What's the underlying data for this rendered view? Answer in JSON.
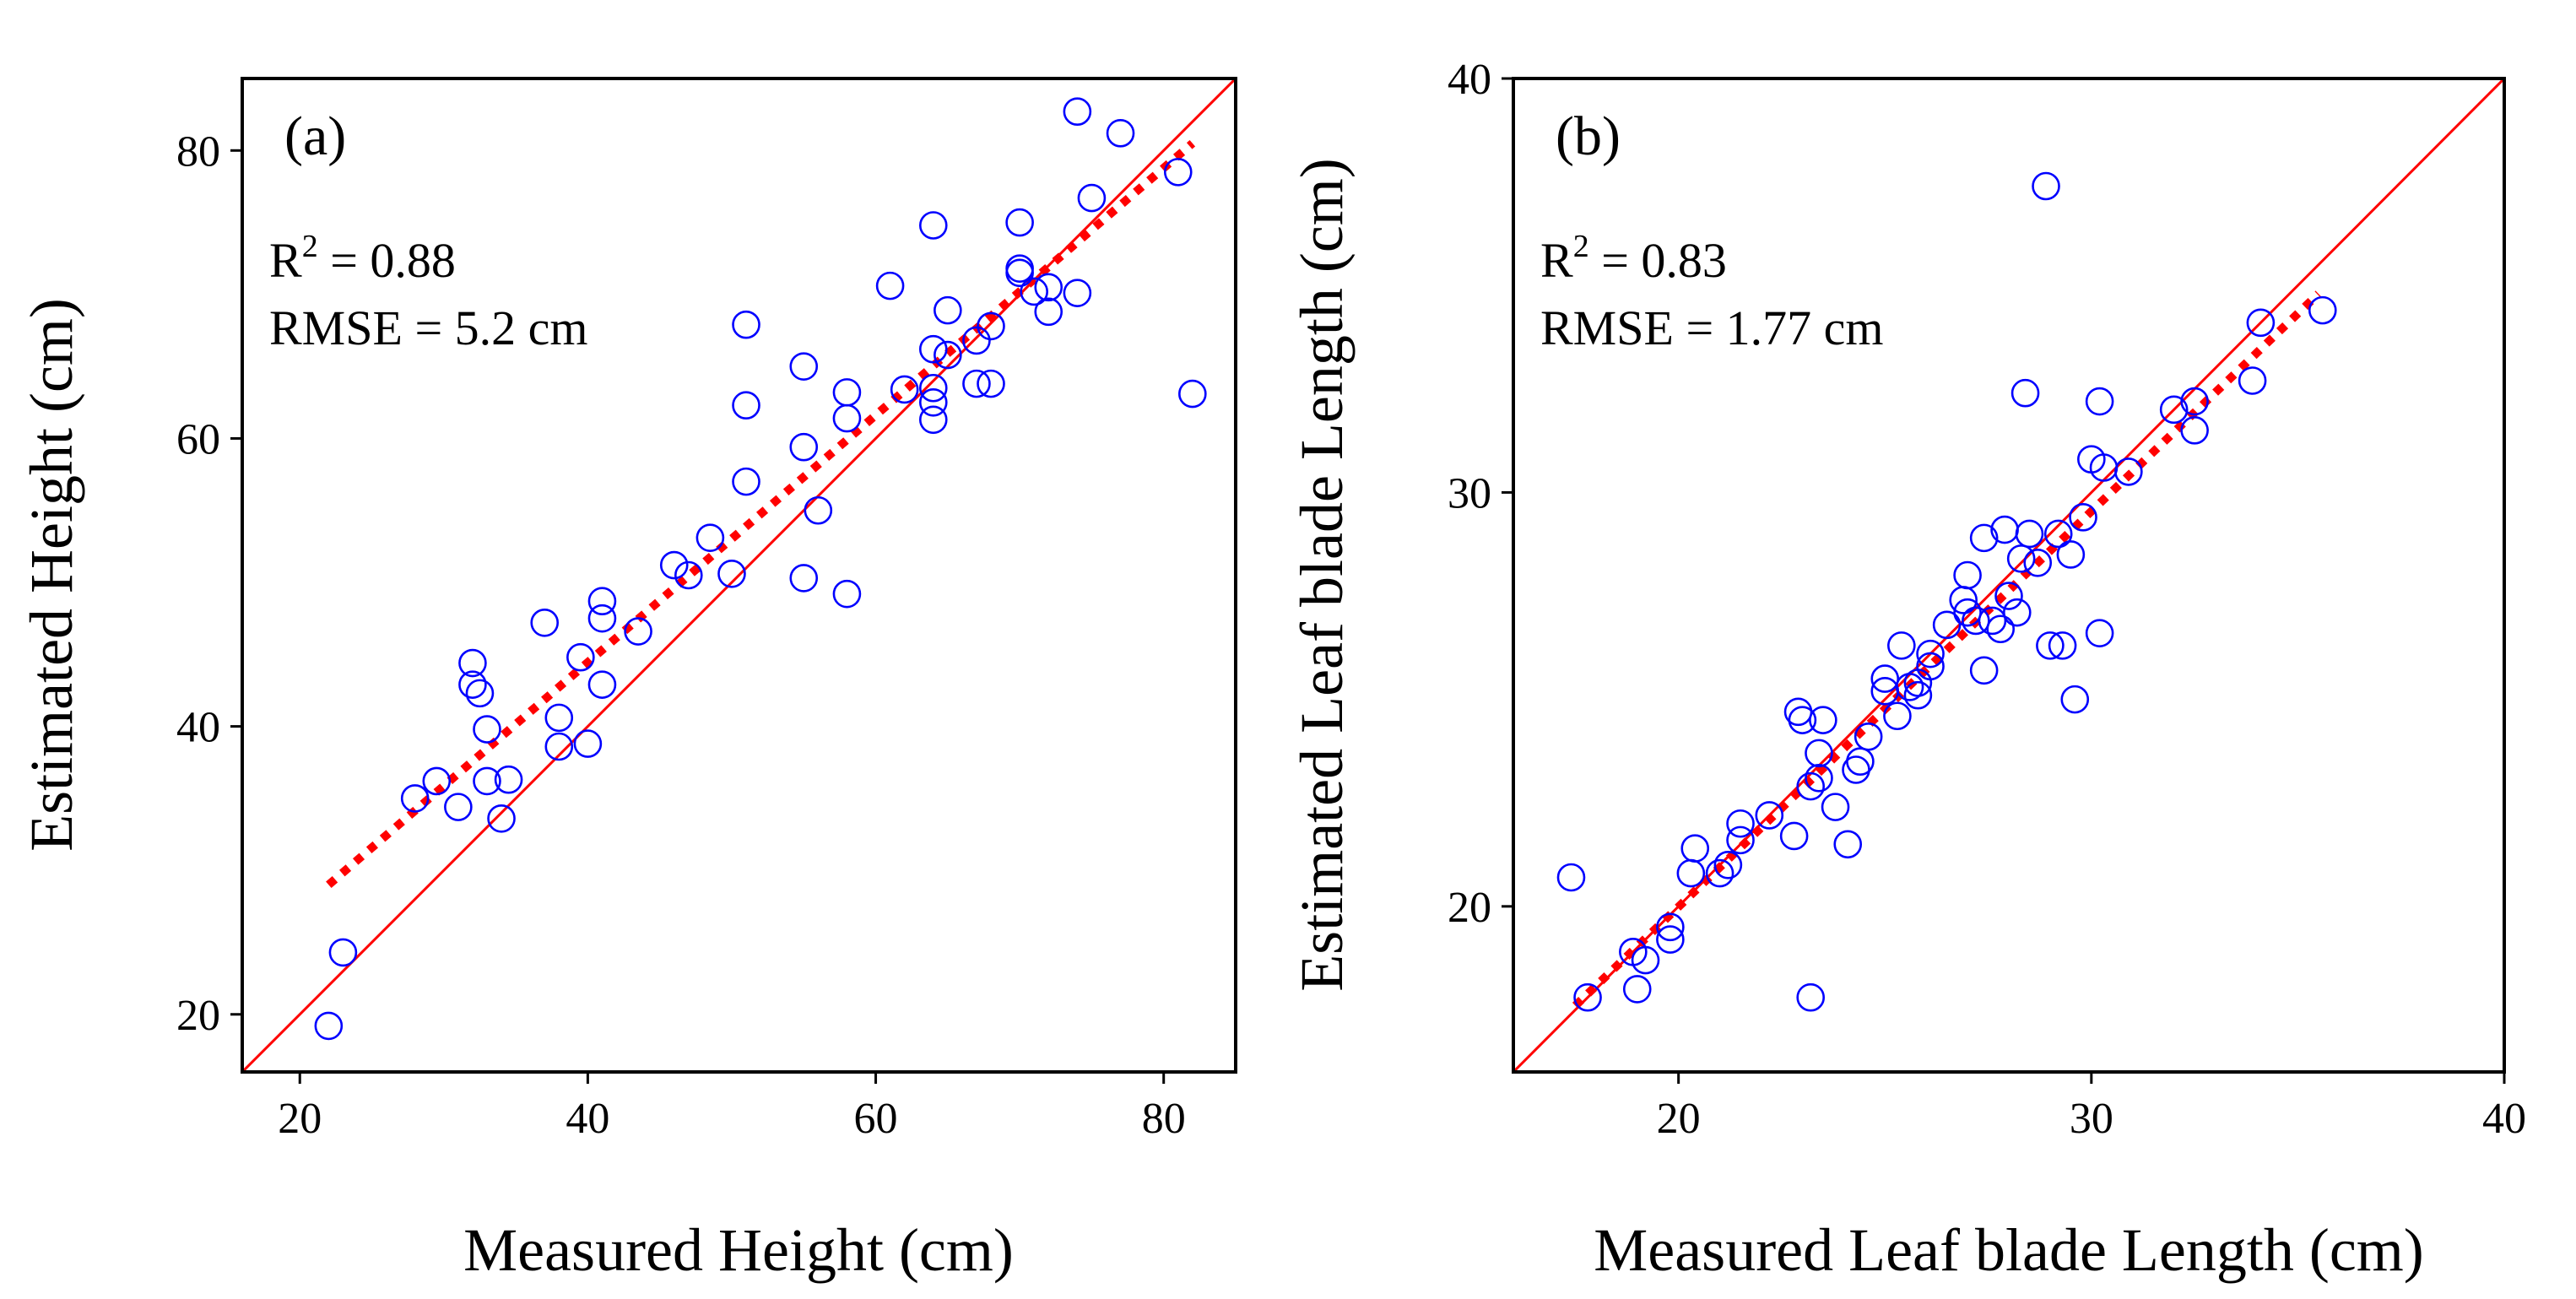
{
  "chart_data": [
    {
      "type": "scatter",
      "panel_label": "(a)",
      "xlabel": "Measured Height (cm)",
      "ylabel": "Estimated Height (cm)",
      "xlim": [
        16,
        85
      ],
      "ylim": [
        16,
        85
      ],
      "xticks": [
        20,
        40,
        60,
        80
      ],
      "yticks": [
        20,
        40,
        60,
        80
      ],
      "grid": false,
      "stats": {
        "r2_prefix": "R",
        "r2_sup": "2",
        "r2_value": " = 0.88",
        "rmse": "RMSE = 5.2 cm"
      },
      "reference_line": {
        "name": "1:1 line",
        "color": "#ff0000",
        "from": [
          16,
          16
        ],
        "to": [
          85,
          85
        ]
      },
      "fit_line": {
        "name": "regression fit",
        "color": "#ff0000",
        "from": [
          22,
          29
        ],
        "to": [
          82,
          80.5
        ]
      },
      "series": [
        {
          "name": "samples",
          "color": "#0000ff",
          "points": [
            [
              22,
              19.2
            ],
            [
              23,
              24.3
            ],
            [
              28,
              35
            ],
            [
              29.5,
              36.2
            ],
            [
              31,
              34.4
            ],
            [
              32,
              44.4
            ],
            [
              32,
              42.9
            ],
            [
              32.5,
              42.3
            ],
            [
              33,
              39.8
            ],
            [
              33,
              36.2
            ],
            [
              34,
              33.6
            ],
            [
              34.5,
              36.3
            ],
            [
              37,
              47.2
            ],
            [
              38,
              40.6
            ],
            [
              38,
              38.6
            ],
            [
              39.5,
              44.8
            ],
            [
              40,
              38.8
            ],
            [
              41,
              48.7
            ],
            [
              41,
              47.5
            ],
            [
              41,
              42.9
            ],
            [
              43.5,
              46.6
            ],
            [
              46,
              51.2
            ],
            [
              47,
              50.5
            ],
            [
              48.5,
              53.1
            ],
            [
              50,
              50.6
            ],
            [
              51,
              67.9
            ],
            [
              51,
              62.3
            ],
            [
              51,
              57
            ],
            [
              55,
              65
            ],
            [
              55,
              59.4
            ],
            [
              55,
              50.3
            ],
            [
              56,
              55
            ],
            [
              58,
              63.2
            ],
            [
              58,
              61.4
            ],
            [
              58,
              49.2
            ],
            [
              61,
              70.6
            ],
            [
              62,
              63.4
            ],
            [
              64,
              74.8
            ],
            [
              64,
              66.2
            ],
            [
              64,
              63.5
            ],
            [
              64,
              62.5
            ],
            [
              64,
              61.3
            ],
            [
              65,
              68.9
            ],
            [
              65,
              65.8
            ],
            [
              67,
              66.8
            ],
            [
              67,
              63.8
            ],
            [
              68,
              67.8
            ],
            [
              68,
              63.8
            ],
            [
              70,
              75
            ],
            [
              70,
              71.8
            ],
            [
              70,
              71.5
            ],
            [
              71,
              70.2
            ],
            [
              72,
              70.5
            ],
            [
              72,
              68.8
            ],
            [
              74,
              82.7
            ],
            [
              74,
              70.1
            ],
            [
              75,
              76.7
            ],
            [
              77,
              81.2
            ],
            [
              81,
              78.5
            ],
            [
              82,
              63.1
            ]
          ]
        }
      ]
    },
    {
      "type": "scatter",
      "panel_label": "(b)",
      "xlabel": "Measured Leaf blade Length (cm)",
      "ylabel": "Estimated Leaf blade Length (cm)",
      "xlim": [
        16,
        40
      ],
      "ylim": [
        16,
        40
      ],
      "xticks": [
        20,
        30,
        40
      ],
      "yticks": [
        20,
        30,
        40
      ],
      "grid": false,
      "stats": {
        "r2_prefix": "R",
        "r2_sup": "2",
        "r2_value": " = 0.83",
        "rmse": "RMSE = 1.77 cm"
      },
      "reference_line": {
        "name": "1:1 line",
        "color": "#ff0000",
        "from": [
          16,
          16
        ],
        "to": [
          40,
          40
        ]
      },
      "fit_line": {
        "name": "regression fit",
        "color": "#ff0000",
        "from": [
          17.5,
          17.6
        ],
        "to": [
          35.5,
          34.8
        ]
      },
      "series": [
        {
          "name": "samples",
          "color": "#0000ff",
          "points": [
            [
              17.4,
              20.7
            ],
            [
              17.8,
              17.8
            ],
            [
              18.9,
              18.9
            ],
            [
              19,
              18
            ],
            [
              19.2,
              18.7
            ],
            [
              19.8,
              19.2
            ],
            [
              19.8,
              19.5
            ],
            [
              20.3,
              20.8
            ],
            [
              20.4,
              21.4
            ],
            [
              21,
              20.8
            ],
            [
              21.2,
              21
            ],
            [
              21.5,
              21.6
            ],
            [
              21.5,
              22
            ],
            [
              22.2,
              22.2
            ],
            [
              22.8,
              21.7
            ],
            [
              22.9,
              24.7
            ],
            [
              23,
              24.5
            ],
            [
              23.2,
              22.9
            ],
            [
              23.2,
              17.8
            ],
            [
              23.4,
              23.7
            ],
            [
              23.4,
              23.1
            ],
            [
              23.5,
              24.5
            ],
            [
              23.8,
              22.4
            ],
            [
              24.1,
              21.5
            ],
            [
              24.3,
              23.3
            ],
            [
              24.4,
              23.5
            ],
            [
              24.6,
              24.1
            ],
            [
              25,
              25.5
            ],
            [
              25,
              25.2
            ],
            [
              25.3,
              24.6
            ],
            [
              25.4,
              26.3
            ],
            [
              25.6,
              25.3
            ],
            [
              25.8,
              25.1
            ],
            [
              25.8,
              25.4
            ],
            [
              26.1,
              25.8
            ],
            [
              26.1,
              26.1
            ],
            [
              26.5,
              26.8
            ],
            [
              26.9,
              27.4
            ],
            [
              27,
              28
            ],
            [
              27,
              27.1
            ],
            [
              27.2,
              26.9
            ],
            [
              27.4,
              25.7
            ],
            [
              27.4,
              28.9
            ],
            [
              27.6,
              26.9
            ],
            [
              27.8,
              26.7
            ],
            [
              27.9,
              29.1
            ],
            [
              28,
              27.5
            ],
            [
              28.2,
              27.1
            ],
            [
              28.3,
              28.4
            ],
            [
              28.4,
              32.4
            ],
            [
              28.5,
              29
            ],
            [
              28.7,
              28.3
            ],
            [
              28.9,
              37.4
            ],
            [
              29,
              26.3
            ],
            [
              29.2,
              29
            ],
            [
              29.3,
              26.3
            ],
            [
              29.5,
              28.5
            ],
            [
              29.6,
              25
            ],
            [
              29.8,
              29.4
            ],
            [
              30,
              30.8
            ],
            [
              30.2,
              26.6
            ],
            [
              30.2,
              32.2
            ],
            [
              30.3,
              30.6
            ],
            [
              30.9,
              30.5
            ],
            [
              32,
              32
            ],
            [
              32.5,
              32.2
            ],
            [
              32.5,
              31.5
            ],
            [
              33.9,
              32.7
            ],
            [
              34.1,
              34.1
            ],
            [
              35.6,
              34.4
            ]
          ]
        }
      ]
    }
  ]
}
